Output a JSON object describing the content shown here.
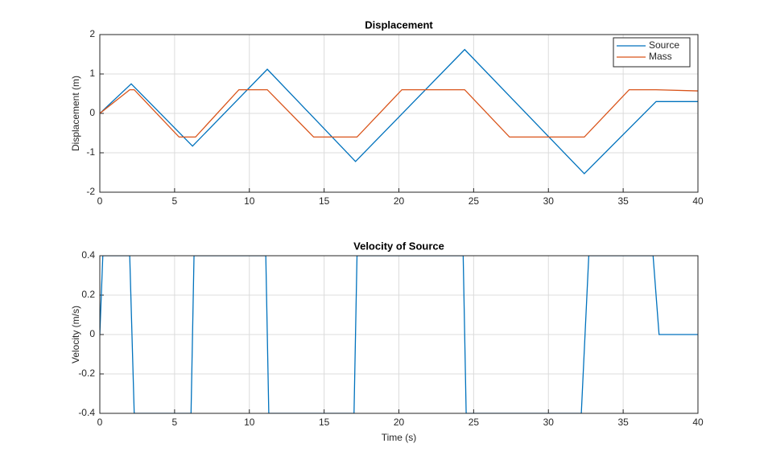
{
  "chart_data": [
    {
      "type": "line",
      "title": "Displacement",
      "ylabel": "Displacement (m)",
      "grid": true,
      "legend": "northeast",
      "xlim": [
        0,
        40
      ],
      "xticks": [
        0,
        5,
        10,
        15,
        20,
        25,
        30,
        35,
        40
      ],
      "ylim": [
        -2,
        2
      ],
      "yticks": [
        -2,
        -1,
        0,
        1,
        2
      ],
      "series": [
        {
          "name": "Source",
          "color": "#0072BD",
          "x": [
            0,
            2.1,
            6.2,
            11.2,
            17.1,
            24.4,
            32.4,
            37.2,
            40
          ],
          "values": [
            0,
            0.75,
            -0.83,
            1.12,
            -1.22,
            1.62,
            -1.53,
            0.3,
            0.3
          ]
        },
        {
          "name": "Mass",
          "color": "#D95319",
          "x": [
            0,
            2,
            2.3,
            5.3,
            6.4,
            9.3,
            11.2,
            14.3,
            17.2,
            20.2,
            24.4,
            27.4,
            32.4,
            35.4,
            37.2,
            40
          ],
          "values": [
            0,
            0.6,
            0.6,
            -0.6,
            -0.6,
            0.6,
            0.6,
            -0.6,
            -0.6,
            0.6,
            0.6,
            -0.6,
            -0.6,
            0.6,
            0.6,
            0.57
          ]
        }
      ]
    },
    {
      "type": "line",
      "title": "Velocity of Source",
      "xlabel": "Time (s)",
      "ylabel": "Velocity (m/s)",
      "grid": true,
      "xlim": [
        0,
        40
      ],
      "xticks": [
        0,
        5,
        10,
        15,
        20,
        25,
        30,
        35,
        40
      ],
      "ylim": [
        -0.4,
        0.4
      ],
      "yticks": [
        -0.4,
        -0.2,
        0,
        0.2,
        0.4
      ],
      "series": [
        {
          "color": "#0072BD",
          "x": [
            0,
            0.2,
            2.0,
            2.3,
            6.1,
            6.3,
            11.1,
            11.3,
            17.0,
            17.2,
            24.3,
            24.5,
            32.2,
            32.7,
            37.0,
            37.4,
            40
          ],
          "values": [
            0,
            0.4,
            0.4,
            -0.4,
            -0.4,
            0.4,
            0.4,
            -0.4,
            -0.4,
            0.4,
            0.4,
            -0.4,
            -0.4,
            0.4,
            0.4,
            0,
            0
          ]
        }
      ]
    }
  ]
}
